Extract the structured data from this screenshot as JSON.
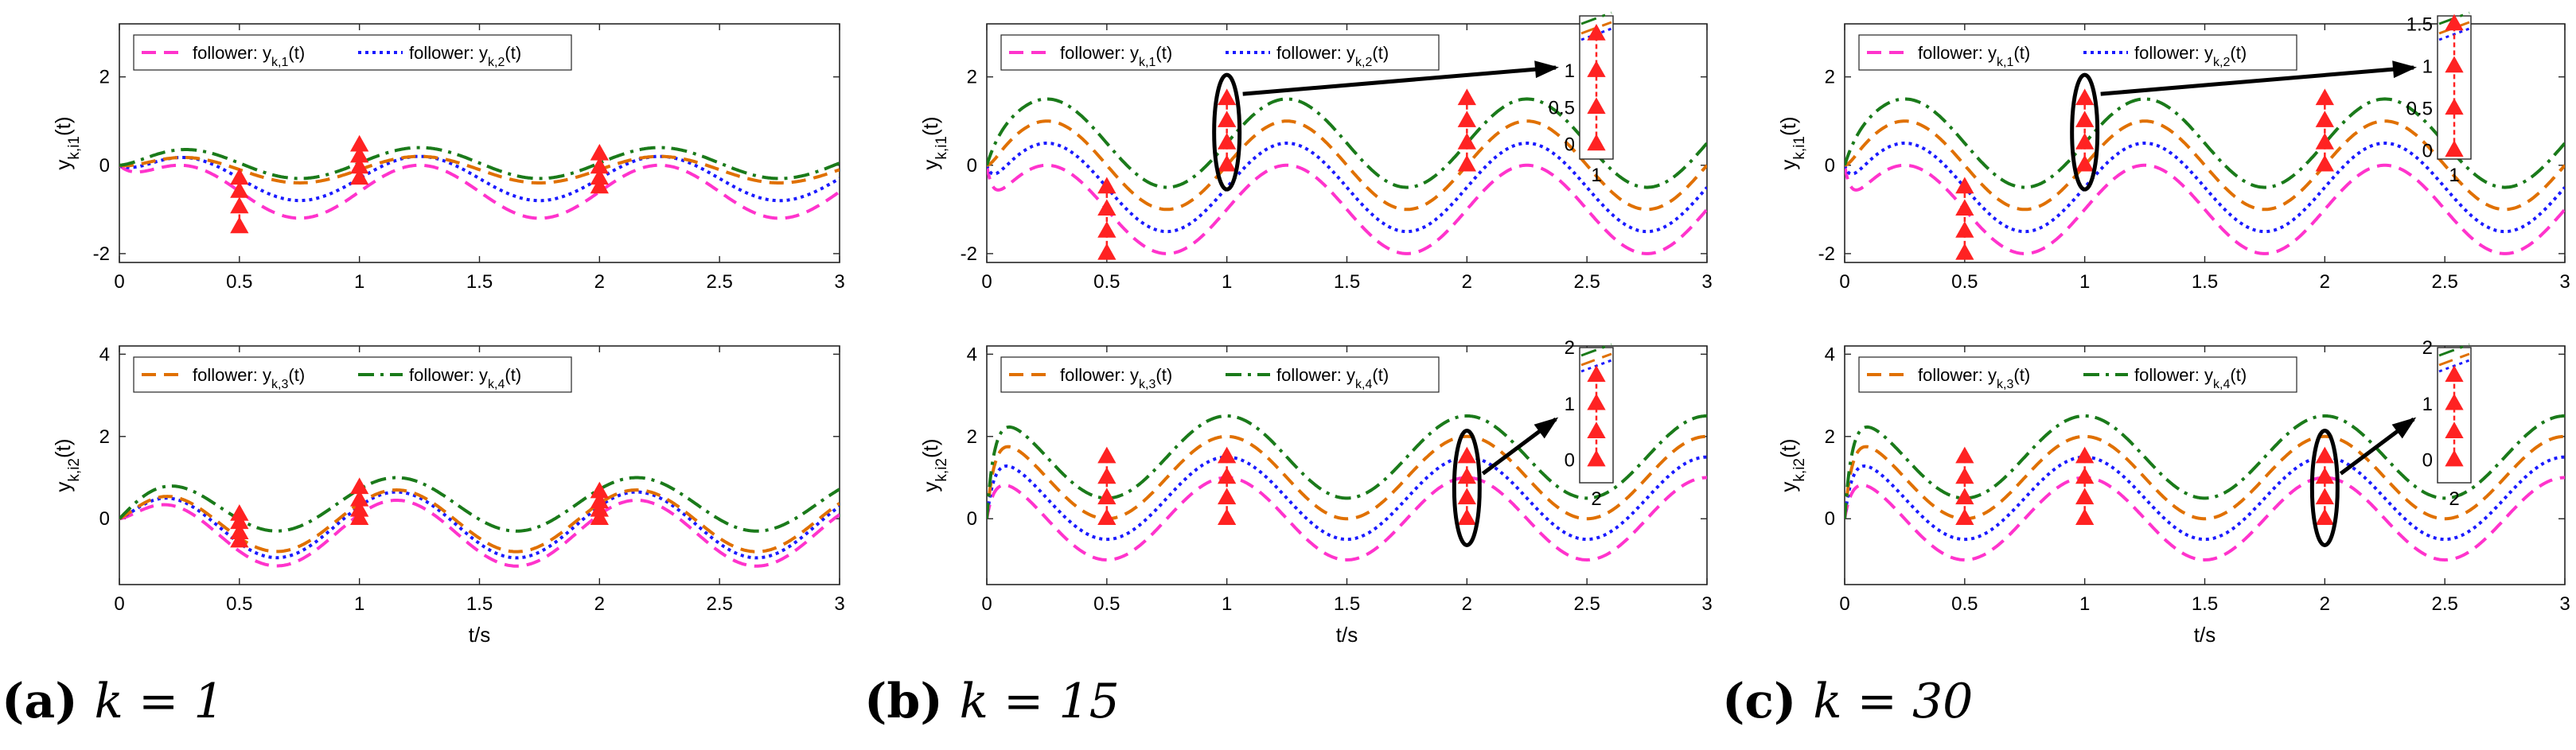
{
  "colors": {
    "y1": "#ff33cc",
    "y2": "#1a1aff",
    "y3": "#e07000",
    "y4": "#1a7a1a",
    "marker": "#ff2222",
    "arrow": "#000000",
    "ellipse": "#000000"
  },
  "line_styles": {
    "y1": "dashed",
    "y2": "dotted",
    "y3": "dashed",
    "y4": "dash-dot"
  },
  "legend_text": {
    "y1": {
      "prefix": "follower: y",
      "sub": "k,1",
      "suffix": "(t)"
    },
    "y2": {
      "prefix": "follower: y",
      "sub": "k,2",
      "suffix": "(t)"
    },
    "y3": {
      "prefix": "follower: y",
      "sub": "k,3",
      "suffix": "(t)"
    },
    "y4": {
      "prefix": "follower: y",
      "sub": "k,4",
      "suffix": "(t)"
    }
  },
  "ylabel_top": {
    "main": "y",
    "sub": "k,i1",
    "suffix": "(t)"
  },
  "ylabel_bottom": {
    "main": "y",
    "sub": "k,i2",
    "suffix": "(t)"
  },
  "xlabel": "t/s",
  "captions": [
    {
      "label": "(a)",
      "text": "k = 1"
    },
    {
      "label": "(b)",
      "text": "k = 15"
    },
    {
      "label": "(c)",
      "text": "k = 30"
    }
  ],
  "chart_data": [
    {
      "id": "a-top",
      "type": "line",
      "k": 1,
      "row": "top",
      "xlim": [
        0,
        3
      ],
      "ylim": [
        -2.2,
        3.2
      ],
      "xticks": [
        0,
        0.5,
        1,
        1.5,
        2,
        2.5,
        3
      ],
      "yticks": [
        -2,
        0,
        2
      ],
      "legend": [
        "y1",
        "y2"
      ],
      "series": [
        {
          "key": "y1",
          "offset": -0.6,
          "amp": 0.6,
          "phase": 0,
          "conv": "slow"
        },
        {
          "key": "y2",
          "offset": -0.3,
          "amp": 0.5,
          "phase": 0,
          "conv": "slow"
        },
        {
          "key": "y3",
          "offset": -0.1,
          "amp": 0.3,
          "phase": 0,
          "conv": "slow"
        },
        {
          "key": "y4",
          "offset": 0.05,
          "amp": 0.35,
          "phase": 0,
          "conv": "slow"
        }
      ],
      "markers": {
        "0.5": [
          -1.4,
          -0.95,
          -0.6,
          -0.3
        ],
        "1": [
          -0.3,
          -0.05,
          0.2,
          0.45
        ],
        "2": [
          -0.5,
          -0.3,
          -0.05,
          0.25
        ]
      }
    },
    {
      "id": "a-bottom",
      "type": "line",
      "k": 1,
      "row": "bottom",
      "xlim": [
        0,
        3
      ],
      "ylim": [
        -1.6,
        4.2
      ],
      "xticks": [
        0,
        0.5,
        1,
        1.5,
        2,
        2.5,
        3
      ],
      "yticks": [
        0,
        2,
        4
      ],
      "legend": [
        "y3",
        "y4"
      ],
      "series": [
        {
          "key": "y1",
          "offset": -0.35,
          "amp": 0.8,
          "phase": 0.6,
          "conv": "slow"
        },
        {
          "key": "y2",
          "offset": -0.15,
          "amp": 0.8,
          "phase": 0.6,
          "conv": "slow"
        },
        {
          "key": "y3",
          "offset": -0.05,
          "amp": 0.75,
          "phase": 0.6,
          "conv": "slow"
        },
        {
          "key": "y4",
          "offset": 0.35,
          "amp": 0.65,
          "phase": 0.6,
          "conv": "slow"
        }
      ],
      "markers": {
        "0.5": [
          -0.55,
          -0.35,
          -0.1,
          0.1
        ],
        "1": [
          0.0,
          0.2,
          0.45,
          0.75
        ],
        "2": [
          0.0,
          0.2,
          0.4,
          0.65
        ]
      }
    },
    {
      "id": "b-top",
      "type": "line",
      "k": 15,
      "row": "top",
      "xlim": [
        0,
        3
      ],
      "ylim": [
        -2.2,
        3.2
      ],
      "xticks": [
        0,
        0.5,
        1,
        1.5,
        2,
        2.5,
        3
      ],
      "yticks": [
        -2,
        0,
        2
      ],
      "legend": [
        "y1",
        "y2"
      ],
      "series": [
        {
          "key": "y1",
          "offset": -1.0,
          "amp": 1.0,
          "phase": 0,
          "conv": "fast"
        },
        {
          "key": "y2",
          "offset": -0.5,
          "amp": 1.0,
          "phase": 0,
          "conv": "fast"
        },
        {
          "key": "y3",
          "offset": 0.0,
          "amp": 1.0,
          "phase": 0,
          "conv": "fast"
        },
        {
          "key": "y4",
          "offset": 0.5,
          "amp": 1.0,
          "phase": 0,
          "conv": "fast"
        }
      ],
      "markers": {
        "0.5": [
          -2.0,
          -1.5,
          -1.0,
          -0.5
        ],
        "1": [
          0.0,
          0.5,
          1.0,
          1.5
        ],
        "2": [
          0.0,
          0.5,
          1.0,
          1.5
        ]
      },
      "ellipse": {
        "t": 1,
        "y": 0.75
      },
      "inset": {
        "yticks": [
          0,
          0.5,
          1
        ],
        "range": [
          -0.2,
          1.75
        ],
        "values": [
          0,
          0.5,
          1,
          1.5
        ],
        "stray": "1"
      }
    },
    {
      "id": "b-bottom",
      "type": "line",
      "k": 15,
      "row": "bottom",
      "xlim": [
        0,
        3
      ],
      "ylim": [
        -1.6,
        4.2
      ],
      "xticks": [
        0,
        0.5,
        1,
        1.5,
        2,
        2.5,
        3
      ],
      "yticks": [
        0,
        2,
        4
      ],
      "legend": [
        "y3",
        "y4"
      ],
      "series": [
        {
          "key": "y1",
          "offset": 0.0,
          "amp": 1.0,
          "phase": 1.5708,
          "conv": "fast"
        },
        {
          "key": "y2",
          "offset": 0.5,
          "amp": 1.0,
          "phase": 1.5708,
          "conv": "fast"
        },
        {
          "key": "y3",
          "offset": 1.0,
          "amp": 1.0,
          "phase": 1.5708,
          "conv": "fast"
        },
        {
          "key": "y4",
          "offset": 1.5,
          "amp": 1.0,
          "phase": 1.5708,
          "conv": "fast"
        }
      ],
      "markers": {
        "0.5": [
          0.0,
          0.5,
          1.0,
          1.5
        ],
        "1": [
          0.0,
          0.5,
          1.0,
          1.5
        ],
        "2": [
          0.0,
          0.5,
          1.0,
          1.5
        ]
      },
      "ellipse": {
        "t": 2,
        "y": 0.75
      },
      "inset": {
        "yticks": [
          0,
          1,
          2
        ],
        "range": [
          -0.4,
          2.0
        ],
        "values": [
          0,
          0.5,
          1,
          1.5
        ],
        "stray": "2"
      }
    },
    {
      "id": "c-top",
      "type": "line",
      "k": 30,
      "row": "top",
      "xlim": [
        0,
        3
      ],
      "ylim": [
        -2.2,
        3.2
      ],
      "xticks": [
        0,
        0.5,
        1,
        1.5,
        2,
        2.5,
        3
      ],
      "yticks": [
        -2,
        0,
        2
      ],
      "legend": [
        "y1",
        "y2"
      ],
      "series": [
        {
          "key": "y1",
          "offset": -1.0,
          "amp": 1.0,
          "phase": 0,
          "conv": "fast"
        },
        {
          "key": "y2",
          "offset": -0.5,
          "amp": 1.0,
          "phase": 0,
          "conv": "fast"
        },
        {
          "key": "y3",
          "offset": 0.0,
          "amp": 1.0,
          "phase": 0,
          "conv": "fast"
        },
        {
          "key": "y4",
          "offset": 0.5,
          "amp": 1.0,
          "phase": 0,
          "conv": "fast"
        }
      ],
      "markers": {
        "0.5": [
          -2.0,
          -1.5,
          -1.0,
          -0.5
        ],
        "1": [
          0.0,
          0.5,
          1.0,
          1.5
        ],
        "2": [
          0.0,
          0.5,
          1.0,
          1.5
        ]
      },
      "ellipse": {
        "t": 1,
        "y": 0.75
      },
      "inset": {
        "yticks": [
          0,
          0.5,
          1,
          1.5
        ],
        "range": [
          -0.1,
          1.6
        ],
        "values": [
          0,
          0.5,
          1,
          1.5
        ],
        "stray": "1"
      }
    },
    {
      "id": "c-bottom",
      "type": "line",
      "k": 30,
      "row": "bottom",
      "xlim": [
        0,
        3
      ],
      "ylim": [
        -1.6,
        4.2
      ],
      "xticks": [
        0,
        0.5,
        1,
        1.5,
        2,
        2.5,
        3
      ],
      "yticks": [
        0,
        2,
        4
      ],
      "legend": [
        "y3",
        "y4"
      ],
      "series": [
        {
          "key": "y1",
          "offset": 0.0,
          "amp": 1.0,
          "phase": 1.5708,
          "conv": "fast"
        },
        {
          "key": "y2",
          "offset": 0.5,
          "amp": 1.0,
          "phase": 1.5708,
          "conv": "fast"
        },
        {
          "key": "y3",
          "offset": 1.0,
          "amp": 1.0,
          "phase": 1.5708,
          "conv": "fast"
        },
        {
          "key": "y4",
          "offset": 1.5,
          "amp": 1.0,
          "phase": 1.5708,
          "conv": "fast"
        }
      ],
      "markers": {
        "0.5": [
          0.0,
          0.5,
          1.0,
          1.5
        ],
        "1": [
          0.0,
          0.5,
          1.0,
          1.5
        ],
        "2": [
          0.0,
          0.5,
          1.0,
          1.5
        ]
      },
      "ellipse": {
        "t": 2,
        "y": 0.75
      },
      "inset": {
        "yticks": [
          0,
          1,
          2
        ],
        "range": [
          -0.4,
          2.0
        ],
        "values": [
          0,
          0.5,
          1,
          1.5
        ],
        "stray": "2"
      }
    }
  ]
}
